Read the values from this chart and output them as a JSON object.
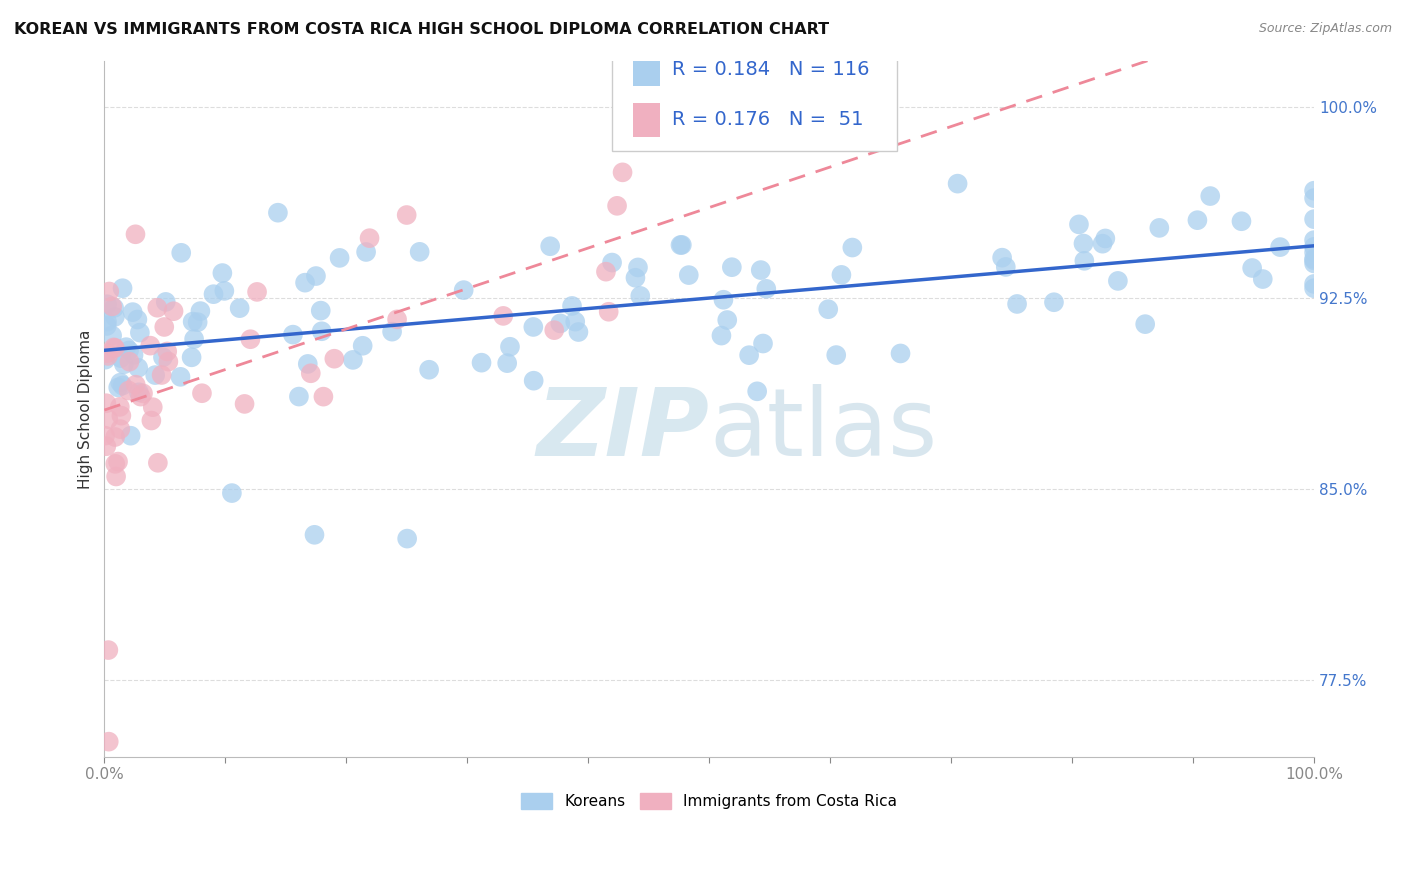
{
  "title": "KOREAN VS IMMIGRANTS FROM COSTA RICA HIGH SCHOOL DIPLOMA CORRELATION CHART",
  "source": "Source: ZipAtlas.com",
  "ylabel": "High School Diploma",
  "xlim": [
    0.0,
    1.0
  ],
  "ylim": [
    0.745,
    1.018
  ],
  "xticklabels": [
    "0.0%",
    "100.0%"
  ],
  "ytick_positions": [
    0.775,
    0.85,
    0.925,
    1.0
  ],
  "yticklabels": [
    "77.5%",
    "85.0%",
    "92.5%",
    "100.0%"
  ],
  "legend_labels": [
    "Koreans",
    "Immigrants from Costa Rica"
  ],
  "korean_R": 0.184,
  "korean_N": 116,
  "costarica_R": 0.176,
  "costarica_N": 51,
  "blue_color": "#aacfee",
  "pink_color": "#f0b0c0",
  "blue_line_color": "#3366cc",
  "pink_line_color": "#cc3355",
  "pink_dash_line_color": "#ee8899",
  "watermark_color": "#d8e8f0",
  "background_color": "#ffffff",
  "grid_color": "#dddddd",
  "tick_color": "#4477cc",
  "title_fontsize": 11.5,
  "axis_label_fontsize": 11,
  "tick_fontsize": 11,
  "legend_fontsize": 14,
  "marker_size": 200
}
